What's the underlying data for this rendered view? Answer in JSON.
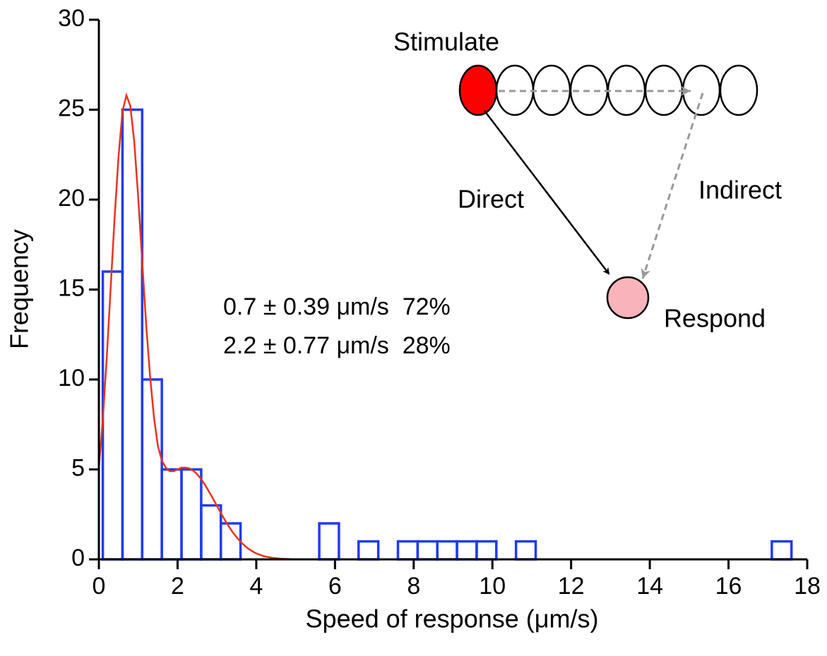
{
  "chart_data": {
    "type": "histogram",
    "xlabel": "Speed of response (μm/s)",
    "ylabel": "Frequency",
    "bins": [
      0.1,
      0.6,
      1.1,
      1.6,
      2.1,
      2.6,
      3.1,
      3.6,
      4.1,
      4.6,
      5.1,
      5.6,
      6.1,
      6.6,
      7.1,
      7.6,
      8.1,
      8.6,
      9.1,
      9.6,
      10.1,
      10.6,
      11.1,
      11.6,
      12.1,
      12.6,
      13.1,
      13.6,
      14.1,
      14.6,
      15.1,
      15.6,
      16.1,
      16.6,
      17.1,
      17.6
    ],
    "values": [
      16,
      25,
      10,
      5,
      5,
      3,
      2,
      0,
      0,
      0,
      0,
      2,
      0,
      1,
      0,
      1,
      1,
      1,
      1,
      1,
      0,
      1,
      0,
      0,
      0,
      0,
      0,
      0,
      0,
      0,
      0,
      0,
      0,
      0,
      1
    ],
    "color": "#1f3cf0",
    "fit": {
      "color": "#e8321e",
      "x": [
        0,
        0.1,
        0.2,
        0.3,
        0.4,
        0.5,
        0.6,
        0.7,
        0.8,
        0.9,
        1.0,
        1.1,
        1.2,
        1.3,
        1.4,
        1.5,
        1.6,
        1.7,
        1.8,
        1.9,
        2.0,
        2.1,
        2.2,
        2.3,
        2.4,
        2.5,
        2.6,
        2.7,
        2.8,
        2.9,
        3.0,
        3.1,
        3.2,
        3.3,
        3.4,
        3.5,
        3.6,
        3.7,
        3.8,
        3.9,
        4.0,
        4.2,
        4.4,
        4.6,
        5.0,
        18
      ],
      "values": [
        5.1,
        7.8,
        11.2,
        15.1,
        19.0,
        22.4,
        24.9,
        25.8,
        25.2,
        23.2,
        20.1,
        16.6,
        13.1,
        10.2,
        7.9,
        6.3,
        5.5,
        5.1,
        4.9,
        4.9,
        5.0,
        5.1,
        5.1,
        5.06,
        4.93,
        4.73,
        4.46,
        4.13,
        3.76,
        3.38,
        2.97,
        2.58,
        2.19,
        1.84,
        1.51,
        1.23,
        0.98,
        0.77,
        0.59,
        0.45,
        0.33,
        0.17,
        0.09,
        0.04,
        0,
        0
      ]
    },
    "annotations": [
      "0.7 ± 0.39 μm/s  72%",
      "2.2 ± 0.77 μm/s  28%"
    ],
    "xlim": [
      0,
      18
    ],
    "ylim": [
      0,
      30
    ],
    "xticks": [
      0,
      2,
      4,
      6,
      8,
      10,
      12,
      14,
      16,
      18
    ],
    "yticks": [
      0,
      5,
      10,
      15,
      20,
      25,
      30
    ]
  },
  "diagram": {
    "labels": [
      "Stimulate",
      "Direct",
      "Indirect",
      "Respond"
    ]
  }
}
